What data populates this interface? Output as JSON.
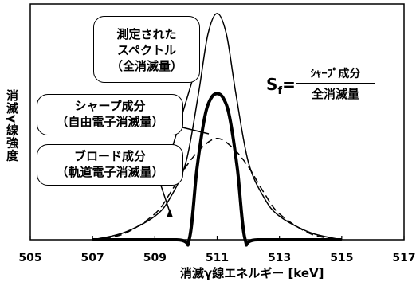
{
  "chart_data": {
    "type": "line",
    "xlabel": "消滅γ線エネルギー [keV]",
    "ylabel": "消滅γ線強度",
    "xlim": [
      505,
      517
    ],
    "x_ticks": [
      "505",
      "507",
      "509",
      "511",
      "513",
      "515",
      "517"
    ],
    "y_ticks": "none",
    "grid": false,
    "legend": "none",
    "series": [
      {
        "name": "測定されたスペクトル（全消滅量）",
        "style": "solid-thin",
        "x": [
          507.0,
          508.0,
          509.0,
          509.5,
          510.0,
          510.4,
          510.7,
          511.0,
          511.3,
          511.6,
          512.0,
          512.5,
          513.0,
          514.0,
          515.0
        ],
        "y": [
          0.0,
          0.03,
          0.1,
          0.18,
          0.33,
          0.62,
          0.87,
          0.96,
          0.87,
          0.62,
          0.33,
          0.18,
          0.1,
          0.03,
          0.0
        ]
      },
      {
        "name": "シャープ成分（自由電子消滅量）",
        "style": "solid-thick",
        "x": [
          507.0,
          509.7,
          510.1,
          510.35,
          510.6,
          510.8,
          511.0,
          511.2,
          511.4,
          511.65,
          511.9,
          512.3,
          515.0
        ],
        "y": [
          0.0,
          0.0,
          0.0,
          0.3,
          0.52,
          0.6,
          0.62,
          0.6,
          0.52,
          0.3,
          0.0,
          0.0,
          0.0
        ]
      },
      {
        "name": "ブロード成分（軌道電子消滅量）",
        "style": "dashed",
        "x": [
          507.0,
          508.0,
          509.0,
          509.5,
          510.0,
          510.5,
          511.0,
          511.5,
          512.0,
          512.5,
          513.0,
          514.0,
          515.0
        ],
        "y": [
          0.0,
          0.025,
          0.11,
          0.2,
          0.31,
          0.39,
          0.43,
          0.39,
          0.31,
          0.2,
          0.11,
          0.025,
          0.0
        ]
      }
    ],
    "annotations": {
      "measured": [
        "測定された",
        "スペクトル",
        "（全消滅量）"
      ],
      "sharp": [
        "シャープ成分",
        "（自由電子消滅量）"
      ],
      "broad": [
        "ブロード成分",
        "（軌道電子消滅量）"
      ],
      "formula": {
        "lhs": "S",
        "lhs_sub": "f",
        "eq": "=",
        "numerator": "ｼｬｰﾌﾟ成分",
        "denominator": "全消滅量"
      }
    }
  },
  "colors": {
    "line": "#000000",
    "background": "#ffffff"
  }
}
